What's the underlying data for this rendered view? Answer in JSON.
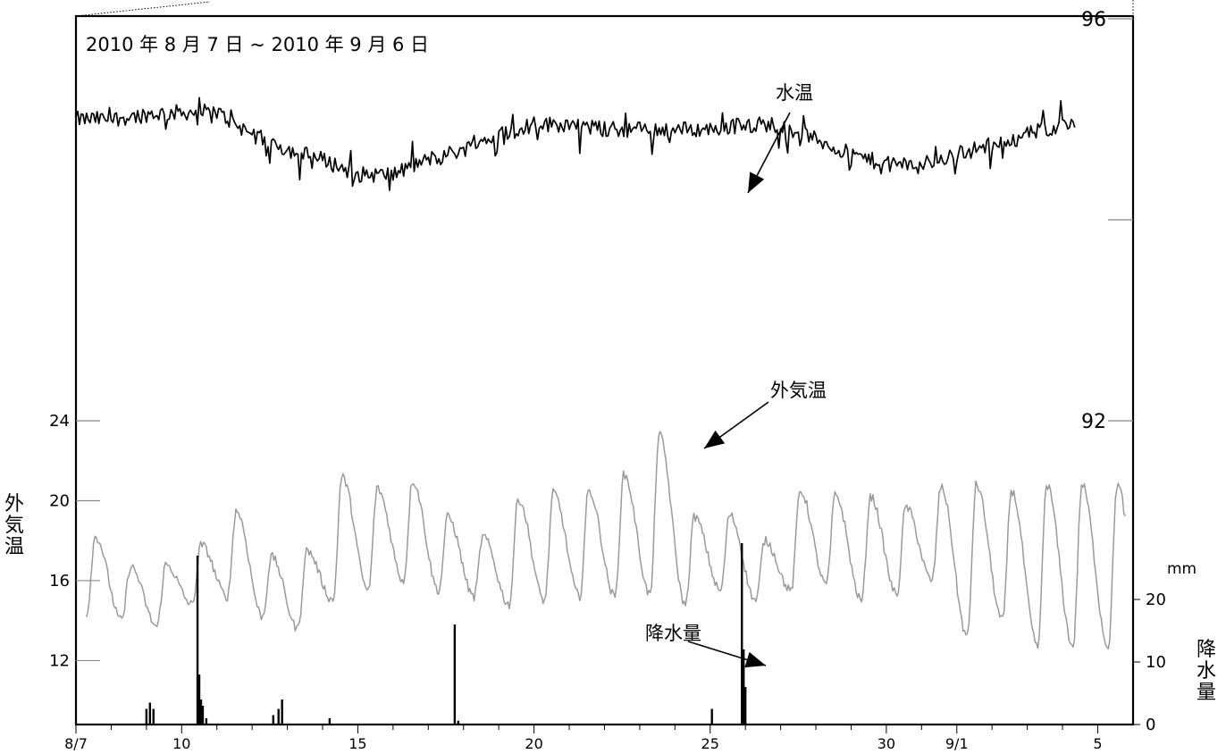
{
  "chart_data": {
    "type": "line",
    "title": "2010 年 8 月 7 日 ~ 2010 年 9 月 6 日",
    "x_axis": {
      "tick_labels": [
        "8/7",
        "10",
        "15",
        "20",
        "25",
        "30",
        "9/1",
        "5"
      ],
      "tick_days": [
        0,
        3,
        8,
        13,
        18,
        23,
        25,
        29
      ],
      "range_days": [
        0,
        30
      ]
    },
    "y_left": {
      "label": "外気温",
      "ticks": [
        12,
        16,
        20,
        24
      ],
      "range": [
        8.8,
        24
      ]
    },
    "y_right_top": {
      "ticks": [
        92,
        96
      ]
    },
    "y_right_precip": {
      "unit": "mm",
      "label": "降水量",
      "ticks": [
        0,
        10,
        20
      ],
      "range": [
        0,
        28
      ]
    },
    "series": [
      {
        "name": "水温",
        "color": "#000000",
        "x_days": [
          0,
          1,
          2,
          3,
          4,
          5,
          6,
          7,
          8,
          9,
          10,
          11,
          12,
          13,
          14,
          15,
          16,
          17,
          18,
          19,
          20,
          21,
          22,
          23,
          24,
          25,
          26,
          27,
          28,
          29
        ],
        "values": [
          95.0,
          95.0,
          95.05,
          95.07,
          95.07,
          94.85,
          94.7,
          94.6,
          94.45,
          94.45,
          94.6,
          94.7,
          94.85,
          94.95,
          94.95,
          94.9,
          94.9,
          94.9,
          94.9,
          94.95,
          94.95,
          94.8,
          94.65,
          94.55,
          94.55,
          94.65,
          94.75,
          94.85,
          94.95,
          95.0
        ]
      },
      {
        "name": "外気温",
        "color": "#9a9a9a",
        "peaks": [
          18.2,
          16.7,
          16.8,
          17.8,
          19.5,
          17.2,
          17.5,
          21.2,
          20.6,
          21.0,
          19.2,
          18.2,
          20.1,
          20.4,
          20.5,
          21.3,
          23.3,
          19.2,
          19.3,
          18.0,
          20.5,
          20.3,
          20.2,
          19.7,
          20.7,
          20.8,
          20.5,
          20.8
        ],
        "troughs": [
          14.3,
          14.0,
          13.7,
          14.8,
          15.2,
          14.2,
          13.6,
          15.0,
          15.5,
          16.0,
          15.5,
          15.2,
          14.8,
          15.0,
          15.2,
          15.2,
          15.3,
          14.8,
          15.5,
          15.0,
          15.5,
          15.8,
          15.0,
          15.3,
          16.0,
          13.2,
          14.0,
          12.7
        ]
      },
      {
        "name": "降水量",
        "color": "#000000",
        "x_days": [
          2.0,
          2.1,
          2.2,
          3.45,
          3.5,
          3.55,
          3.6,
          3.7,
          5.6,
          5.75,
          5.85,
          7.2,
          10.75,
          10.85,
          18.05,
          18.9,
          18.95,
          19.0
        ],
        "values": [
          2.5,
          3.5,
          2.5,
          27,
          8,
          4,
          3,
          1,
          1.5,
          2.5,
          4,
          1,
          16,
          0.6,
          2.5,
          29,
          12,
          6
        ]
      }
    ],
    "annotations": [
      {
        "text": "水温",
        "series": "水温"
      },
      {
        "text": "外気温",
        "series": "外気温"
      },
      {
        "text": "降水量",
        "series": "降水量"
      }
    ]
  }
}
